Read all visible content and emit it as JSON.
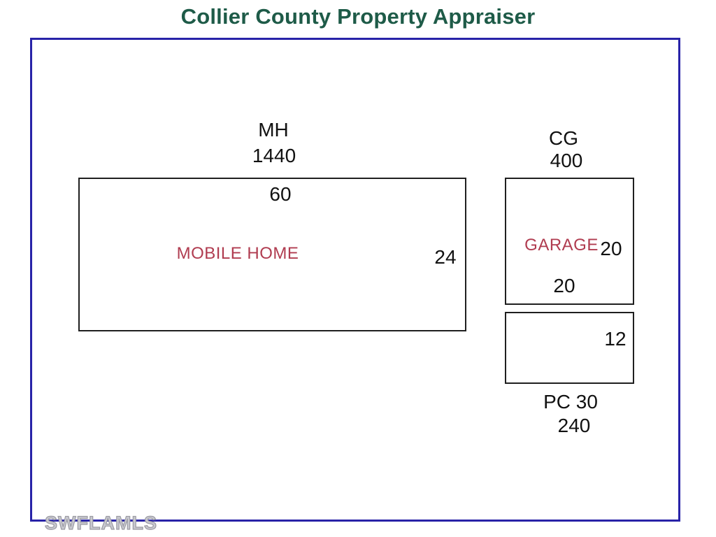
{
  "title": "Collier County Property Appraiser",
  "watermark": "SWFLAMLS",
  "colors": {
    "title_green": "#1e5b48",
    "border_blue": "#2823a8",
    "outline_black": "#1f1f1f",
    "label_red": "#b03c50",
    "dim_black": "#111111",
    "watermark_gray": "#9b9ba3"
  },
  "sketch": {
    "mobile_home": {
      "code": "MH",
      "area": "1440",
      "name": "MOBILE HOME",
      "top_dim": "60",
      "right_dim": "24"
    },
    "garage": {
      "code": "CG",
      "area": "400",
      "name": "GARAGE",
      "right_dim": "20",
      "bottom_dim": "20"
    },
    "porch": {
      "code": "PC 30",
      "area": "240",
      "right_dim": "12"
    }
  }
}
